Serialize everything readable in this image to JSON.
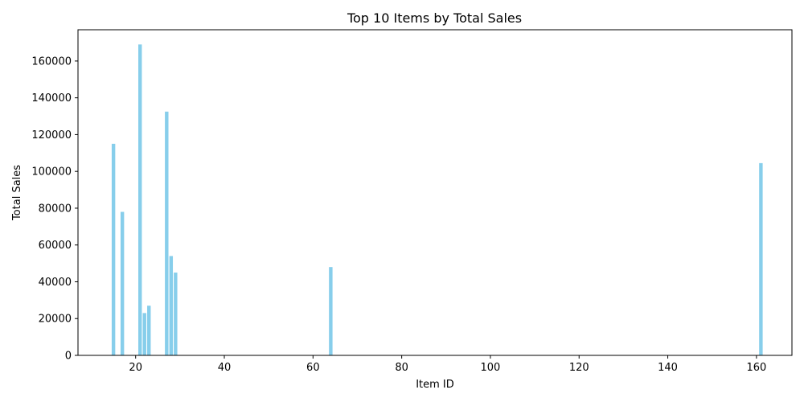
{
  "chart_data": {
    "type": "bar",
    "title": "Top 10 Items by Total Sales",
    "xlabel": "Item ID",
    "ylabel": "Total Sales",
    "x": [
      15,
      17,
      21,
      22,
      23,
      27,
      28,
      29,
      64,
      161
    ],
    "values": [
      115000,
      78000,
      169000,
      23000,
      27000,
      132500,
      54000,
      45000,
      48000,
      104500
    ],
    "xlim": [
      7,
      168
    ],
    "ylim": [
      0,
      177000
    ],
    "xticks": [
      20,
      40,
      60,
      80,
      100,
      120,
      140,
      160
    ],
    "yticks": [
      0,
      20000,
      40000,
      60000,
      80000,
      100000,
      120000,
      140000,
      160000
    ],
    "bar_width_units": 0.8,
    "bar_color": "#87ceeb",
    "grid": false
  }
}
